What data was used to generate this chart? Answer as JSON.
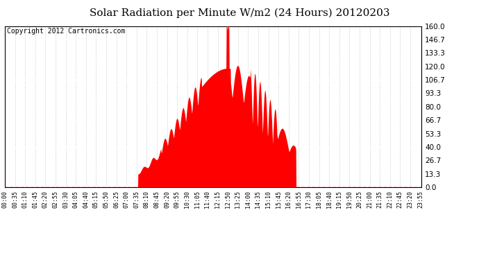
{
  "title": "Solar Radiation per Minute W/m2 (24 Hours) 20120203",
  "copyright_text": "Copyright 2012 Cartronics.com",
  "fill_color": "#ff0000",
  "line_color": "#ff0000",
  "bg_color": "#ffffff",
  "dashed_line_color": "#ff0000",
  "yticks": [
    0.0,
    13.3,
    26.7,
    40.0,
    53.3,
    66.7,
    80.0,
    93.3,
    106.7,
    120.0,
    133.3,
    146.7,
    160.0
  ],
  "ymax": 160.0,
  "ymin": 0.0,
  "title_fontsize": 11,
  "copyright_fontsize": 7,
  "xtick_fontsize": 6,
  "ytick_fontsize": 7.5,
  "sunrise_min": 460,
  "sunset_min": 1005,
  "peak_min": 770,
  "peak_sigma": 155,
  "peak_max": 118
}
